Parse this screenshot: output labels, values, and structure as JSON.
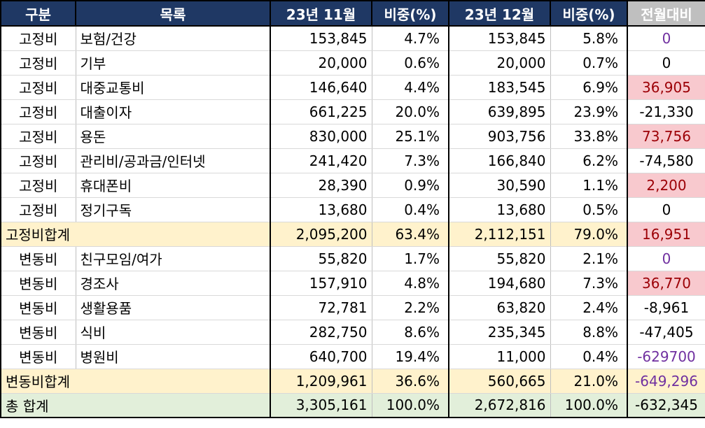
{
  "header": {
    "category": "구분",
    "item": "목록",
    "nov": "23년 11월",
    "nov_pct": "비중(%)",
    "dec": "23년 12월",
    "dec_pct": "비중(%)",
    "diff": "전월대비"
  },
  "fixed_rows": [
    {
      "cat": "고정비",
      "item": "보험/건강",
      "nov": "153,845",
      "nov_pct": "4.7%",
      "dec": "153,845",
      "dec_pct": "5.8%",
      "diff": "0",
      "style": "zero-purple"
    },
    {
      "cat": "고정비",
      "item": "기부",
      "nov": "20,000",
      "nov_pct": "0.6%",
      "dec": "20,000",
      "dec_pct": "0.7%",
      "diff": "0",
      "style": ""
    },
    {
      "cat": "고정비",
      "item": "대중교통비",
      "nov": "146,640",
      "nov_pct": "4.4%",
      "dec": "183,545",
      "dec_pct": "6.9%",
      "diff": "36,905",
      "style": "pos"
    },
    {
      "cat": "고정비",
      "item": "대출이자",
      "nov": "661,225",
      "nov_pct": "20.0%",
      "dec": "639,895",
      "dec_pct": "23.9%",
      "diff": "-21,330",
      "style": ""
    },
    {
      "cat": "고정비",
      "item": "용돈",
      "nov": "830,000",
      "nov_pct": "25.1%",
      "dec": "903,756",
      "dec_pct": "33.8%",
      "diff": "73,756",
      "style": "pos"
    },
    {
      "cat": "고정비",
      "item": "관리비/공과금/인터넷",
      "nov": "241,420",
      "nov_pct": "7.3%",
      "dec": "166,840",
      "dec_pct": "6.2%",
      "diff": "-74,580",
      "style": ""
    },
    {
      "cat": "고정비",
      "item": "휴대폰비",
      "nov": "28,390",
      "nov_pct": "0.9%",
      "dec": "30,590",
      "dec_pct": "1.1%",
      "diff": "2,200",
      "style": "pos"
    },
    {
      "cat": "고정비",
      "item": "정기구독",
      "nov": "13,680",
      "nov_pct": "0.4%",
      "dec": "13,680",
      "dec_pct": "0.5%",
      "diff": "0",
      "style": ""
    }
  ],
  "fixed_subtotal": {
    "label": "고정비합계",
    "nov": "2,095,200",
    "nov_pct": "63.4%",
    "dec": "2,112,151",
    "dec_pct": "79.0%",
    "diff": "16,951",
    "style": "pos"
  },
  "variable_rows": [
    {
      "cat": "변동비",
      "item": "친구모임/여가",
      "nov": "55,820",
      "nov_pct": "1.7%",
      "dec": "55,820",
      "dec_pct": "2.1%",
      "diff": "0",
      "style": "zero-purple"
    },
    {
      "cat": "변동비",
      "item": "경조사",
      "nov": "157,910",
      "nov_pct": "4.8%",
      "dec": "194,680",
      "dec_pct": "7.3%",
      "diff": "36,770",
      "style": "pos"
    },
    {
      "cat": "변동비",
      "item": "생활용품",
      "nov": "72,781",
      "nov_pct": "2.2%",
      "dec": "63,820",
      "dec_pct": "2.4%",
      "diff": "-8,961",
      "style": ""
    },
    {
      "cat": "변동비",
      "item": "식비",
      "nov": "282,750",
      "nov_pct": "8.6%",
      "dec": "235,345",
      "dec_pct": "8.8%",
      "diff": "-47,405",
      "style": ""
    },
    {
      "cat": "변동비",
      "item": "병원비",
      "nov": "640,700",
      "nov_pct": "19.4%",
      "dec": "11,000",
      "dec_pct": "0.4%",
      "diff": "-629700",
      "style": "neg-purple"
    }
  ],
  "variable_subtotal": {
    "label": "변동비합계",
    "nov": "1,209,961",
    "nov_pct": "36.6%",
    "dec": "560,665",
    "dec_pct": "21.0%",
    "diff": "-649,296",
    "style": "neg-purple"
  },
  "total": {
    "label": "총 합계",
    "nov": "3,305,161",
    "nov_pct": "100.0%",
    "dec": "2,672,816",
    "dec_pct": "100.0%",
    "diff": "-632,345",
    "style": ""
  },
  "colors": {
    "header_bg": "#1f3864",
    "header_diff_bg": "#bfbfbf",
    "subtotal_bg": "#fff2cc",
    "total_bg": "#e2efda",
    "increase_bg": "#f8c9ce",
    "increase_text": "#9c0006",
    "purple_text": "#7030a0"
  }
}
